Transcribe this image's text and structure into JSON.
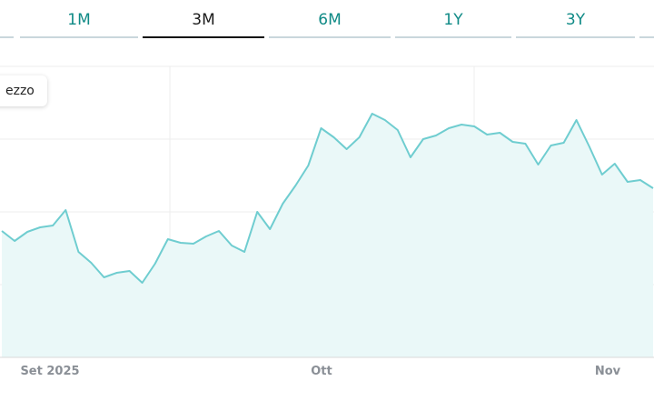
{
  "tabs": [
    {
      "label": "",
      "active": false
    },
    {
      "label": "1M",
      "active": false
    },
    {
      "label": "3M",
      "active": true
    },
    {
      "label": "6M",
      "active": false
    },
    {
      "label": "1Y",
      "active": false
    },
    {
      "label": "3Y",
      "active": false
    },
    {
      "label": "",
      "active": false
    }
  ],
  "legend": {
    "label": "ezzo"
  },
  "chart_data": {
    "type": "area",
    "title": "",
    "xlabel": "",
    "ylabel": "",
    "x_ticks": [
      "Set 2025",
      "Ott",
      "Nov"
    ],
    "grid": true,
    "y_tick_labels": [],
    "series": [
      {
        "line_color": "#6fcdd0",
        "fill_color": "#eaf8f8",
        "values": [
          254,
          265,
          255,
          250,
          248,
          231,
          277,
          289,
          305,
          300,
          298,
          311,
          290,
          263,
          267,
          268,
          260,
          254,
          270,
          277,
          233,
          252,
          224,
          204,
          182,
          141,
          151,
          164,
          151,
          125,
          132,
          143,
          173,
          153,
          149,
          141,
          137,
          139,
          148,
          146,
          156,
          158,
          181,
          160,
          157,
          132,
          161,
          192,
          180,
          200,
          198,
          207
        ]
      }
    ]
  }
}
